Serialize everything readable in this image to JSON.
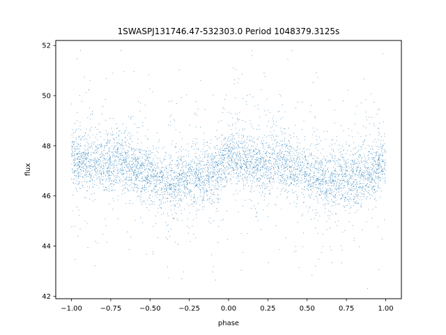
{
  "chart_data": {
    "type": "scatter",
    "title": "1SWASPJ131746.47-532303.0 Period 1048379.3125s",
    "xlabel": "phase",
    "ylabel": "flux",
    "xlim": [
      -1.1,
      1.1
    ],
    "ylim": [
      41.9,
      52.2
    ],
    "xticks": [
      -1.0,
      -0.75,
      -0.5,
      -0.25,
      0.0,
      0.25,
      0.5,
      0.75,
      1.0
    ],
    "xtick_labels": [
      "−1.00",
      "−0.75",
      "−0.50",
      "−0.25",
      "0.00",
      "0.25",
      "0.50",
      "0.75",
      "1.00"
    ],
    "yticks": [
      42,
      44,
      46,
      48,
      50,
      52
    ],
    "ytick_labels": [
      "42",
      "44",
      "46",
      "48",
      "50",
      "52"
    ],
    "grid": false,
    "marker_color": "#1f77b4",
    "series": [
      {
        "profile": {
          "phase": [
            -1.0,
            -0.9,
            -0.8,
            -0.7,
            -0.6,
            -0.5,
            -0.4,
            -0.3,
            -0.2,
            -0.1,
            0.0,
            0.1,
            0.2,
            0.3,
            0.4,
            0.5,
            0.6,
            0.7,
            0.8,
            0.9,
            1.0
          ],
          "median_flux": [
            47.5,
            47.3,
            47.2,
            47.5,
            47.1,
            46.8,
            46.5,
            46.6,
            46.7,
            46.9,
            47.5,
            47.3,
            47.2,
            47.5,
            47.1,
            46.8,
            46.5,
            46.6,
            46.7,
            46.9,
            47.5
          ]
        }
      }
    ]
  }
}
